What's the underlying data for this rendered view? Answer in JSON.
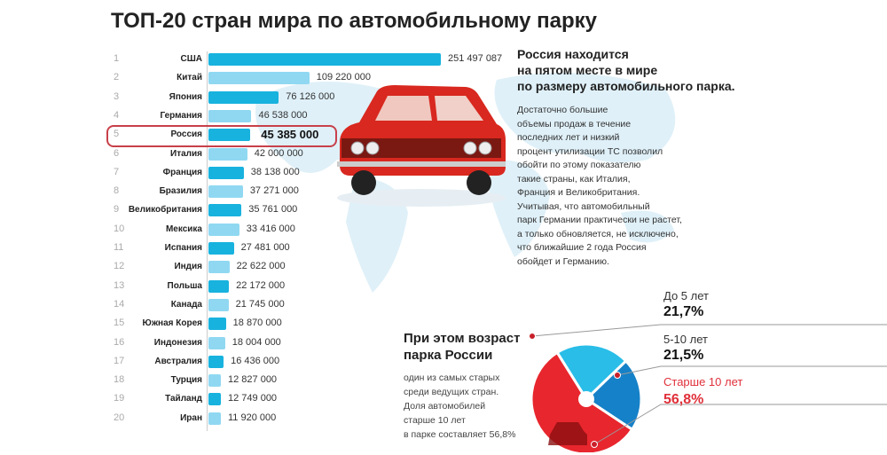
{
  "title": "ТОП-20 стран мира по автомобильному парку",
  "highlight_country": "Россия",
  "colors": {
    "bar_dark": "#18b2de",
    "bar_light": "#90d8f2",
    "highlight": "#c8404a",
    "pie_light": "#29bde8",
    "pie_dark": "#1581c8",
    "pie_red": "#e8262e"
  },
  "chart_data": [
    {
      "type": "bar",
      "title": "ТОП-20 стран мира по автомобильному парку",
      "orientation": "horizontal",
      "ranks": [
        "1",
        "2",
        "3",
        "4",
        "5",
        "6",
        "7",
        "8",
        "9",
        "10",
        "11",
        "12",
        "13",
        "14",
        "15",
        "16",
        "17",
        "18",
        "19",
        "20"
      ],
      "categories": [
        "США",
        "Китай",
        "Япония",
        "Германия",
        "Россия",
        "Италия",
        "Франция",
        "Бразилия",
        "Великобритания",
        "Мексика",
        "Испания",
        "Индия",
        "Польша",
        "Канада",
        "Южная Корея",
        "Индонезия",
        "Австралия",
        "Турция",
        "Тайланд",
        "Иран"
      ],
      "values": [
        251497087,
        109220000,
        76126000,
        46538000,
        45385000,
        42000000,
        38138000,
        37271000,
        35761000,
        33416000,
        27481000,
        22622000,
        22172000,
        21745000,
        18870000,
        18004000,
        16436000,
        12827000,
        12749000,
        11920000
      ],
      "value_labels": [
        "251 497 087",
        "109 220 000",
        "76 126 000",
        "46 538 000",
        "45 385 000",
        "42 000 000",
        "38 138 000",
        "37 271 000",
        "35 761 000",
        "33 416 000",
        "27 481 000",
        "22 622 000",
        "22 172 000",
        "21 745 000",
        "18 870 000",
        "18 004 000",
        "16 436 000",
        "12 827 000",
        "12 749 000",
        "11 920 000"
      ]
    },
    {
      "type": "pie",
      "title": "При этом возраст парка России",
      "labels": [
        "До 5 лет",
        "5-10 лет",
        "Старше 10 лет"
      ],
      "values": [
        21.7,
        21.5,
        56.8
      ],
      "value_labels": [
        "21,7%",
        "21,5%",
        "56,8%"
      ]
    }
  ],
  "right_text": {
    "heading": [
      "Россия находится",
      "на пятом месте в мире",
      "по размеру автомобильного парка."
    ],
    "paragraph": [
      "Достаточно большие",
      "объемы продаж в течение",
      "последних лет и низкий",
      "процент утилизации ТС позволил",
      "обойти по этому показателю",
      "такие страны, как Италия,",
      "Франция и Великобритания.",
      "Учитывая, что автомобильный",
      "парк Германии практически не растет,",
      "а только обновляется, не исключено,",
      "что ближайшие 2 года Россия",
      "обойдет и Германию."
    ]
  },
  "age_text": {
    "heading": [
      "При этом возраст",
      "парка России"
    ],
    "paragraph": [
      "один из самых старых",
      "среди ведущих стран.",
      "Доля автомобилей",
      "старше 10 лет",
      "в парке составляет 56,8%"
    ]
  }
}
